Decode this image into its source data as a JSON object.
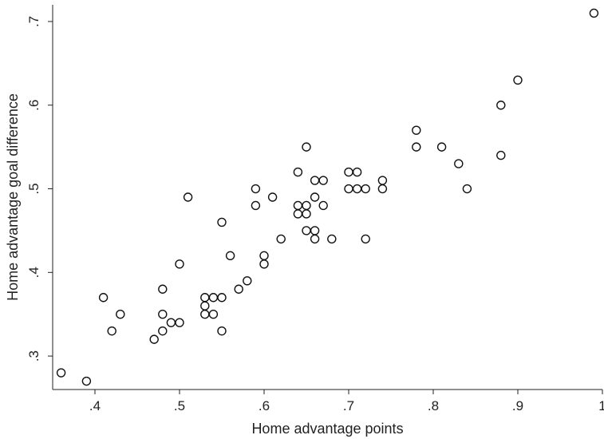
{
  "chart_data": {
    "type": "scatter",
    "xlabel": "Home advantage points",
    "ylabel": "Home advantage goal difference",
    "xlim": [
      0.35,
      1.0
    ],
    "ylim": [
      0.26,
      0.72
    ],
    "x_ticks": [
      0.4,
      0.5,
      0.6,
      0.7,
      0.8,
      0.9,
      1.0
    ],
    "x_tick_labels": [
      ".4",
      ".5",
      ".6",
      ".7",
      ".8",
      ".9",
      "1"
    ],
    "y_ticks": [
      0.3,
      0.4,
      0.5,
      0.6,
      0.7
    ],
    "y_tick_labels": [
      ".3",
      ".4",
      ".5",
      ".6",
      ".7"
    ],
    "grid": false,
    "marker": "hollow-circle",
    "marker_color": "#111111",
    "points": [
      {
        "x": 0.36,
        "y": 0.28
      },
      {
        "x": 0.39,
        "y": 0.27
      },
      {
        "x": 0.41,
        "y": 0.37
      },
      {
        "x": 0.42,
        "y": 0.33
      },
      {
        "x": 0.43,
        "y": 0.35
      },
      {
        "x": 0.47,
        "y": 0.32
      },
      {
        "x": 0.48,
        "y": 0.38
      },
      {
        "x": 0.48,
        "y": 0.35
      },
      {
        "x": 0.48,
        "y": 0.33
      },
      {
        "x": 0.49,
        "y": 0.34
      },
      {
        "x": 0.5,
        "y": 0.41
      },
      {
        "x": 0.5,
        "y": 0.34
      },
      {
        "x": 0.51,
        "y": 0.49
      },
      {
        "x": 0.53,
        "y": 0.37
      },
      {
        "x": 0.53,
        "y": 0.36
      },
      {
        "x": 0.53,
        "y": 0.35
      },
      {
        "x": 0.54,
        "y": 0.37
      },
      {
        "x": 0.54,
        "y": 0.35
      },
      {
        "x": 0.55,
        "y": 0.46
      },
      {
        "x": 0.55,
        "y": 0.37
      },
      {
        "x": 0.55,
        "y": 0.33
      },
      {
        "x": 0.56,
        "y": 0.42
      },
      {
        "x": 0.57,
        "y": 0.38
      },
      {
        "x": 0.58,
        "y": 0.39
      },
      {
        "x": 0.59,
        "y": 0.5
      },
      {
        "x": 0.59,
        "y": 0.48
      },
      {
        "x": 0.6,
        "y": 0.42
      },
      {
        "x": 0.6,
        "y": 0.41
      },
      {
        "x": 0.61,
        "y": 0.49
      },
      {
        "x": 0.62,
        "y": 0.44
      },
      {
        "x": 0.64,
        "y": 0.52
      },
      {
        "x": 0.64,
        "y": 0.48
      },
      {
        "x": 0.64,
        "y": 0.47
      },
      {
        "x": 0.65,
        "y": 0.55
      },
      {
        "x": 0.65,
        "y": 0.48
      },
      {
        "x": 0.65,
        "y": 0.47
      },
      {
        "x": 0.65,
        "y": 0.45
      },
      {
        "x": 0.66,
        "y": 0.51
      },
      {
        "x": 0.66,
        "y": 0.49
      },
      {
        "x": 0.66,
        "y": 0.45
      },
      {
        "x": 0.66,
        "y": 0.44
      },
      {
        "x": 0.67,
        "y": 0.51
      },
      {
        "x": 0.67,
        "y": 0.48
      },
      {
        "x": 0.68,
        "y": 0.44
      },
      {
        "x": 0.7,
        "y": 0.52
      },
      {
        "x": 0.7,
        "y": 0.5
      },
      {
        "x": 0.71,
        "y": 0.52
      },
      {
        "x": 0.71,
        "y": 0.5
      },
      {
        "x": 0.72,
        "y": 0.5
      },
      {
        "x": 0.72,
        "y": 0.44
      },
      {
        "x": 0.74,
        "y": 0.51
      },
      {
        "x": 0.74,
        "y": 0.5
      },
      {
        "x": 0.78,
        "y": 0.57
      },
      {
        "x": 0.78,
        "y": 0.55
      },
      {
        "x": 0.81,
        "y": 0.55
      },
      {
        "x": 0.83,
        "y": 0.53
      },
      {
        "x": 0.84,
        "y": 0.5
      },
      {
        "x": 0.88,
        "y": 0.6
      },
      {
        "x": 0.88,
        "y": 0.54
      },
      {
        "x": 0.9,
        "y": 0.63
      },
      {
        "x": 0.99,
        "y": 0.71
      }
    ]
  }
}
